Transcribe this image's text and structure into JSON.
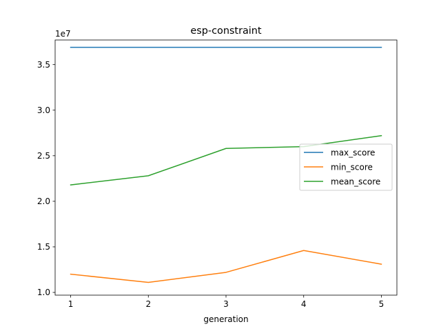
{
  "chart_data": {
    "type": "line",
    "title": "esp-constraint",
    "xlabel": "generation",
    "ylabel": "",
    "y_multiplier_label": "1e7",
    "x": [
      1,
      2,
      3,
      4,
      5
    ],
    "xticks": [
      "1",
      "2",
      "3",
      "4",
      "5"
    ],
    "yticks": [
      1.0,
      1.5,
      2.0,
      2.5,
      3.0,
      3.5
    ],
    "ytick_labels": [
      "1.0",
      "1.5",
      "2.0",
      "2.5",
      "3.0",
      "3.5"
    ],
    "ylim": [
      0.97,
      3.77
    ],
    "xlim": [
      0.8,
      5.2
    ],
    "grid": false,
    "legend_position": "center-right",
    "series": [
      {
        "name": "max_score",
        "color": "#1f77b4",
        "values": [
          3.69,
          3.69,
          3.69,
          3.69,
          3.69
        ]
      },
      {
        "name": "min_score",
        "color": "#ff7f0e",
        "values": [
          1.2,
          1.11,
          1.22,
          1.46,
          1.31
        ]
      },
      {
        "name": "mean_score",
        "color": "#2ca02c",
        "values": [
          2.18,
          2.28,
          2.58,
          2.6,
          2.72
        ]
      }
    ]
  }
}
